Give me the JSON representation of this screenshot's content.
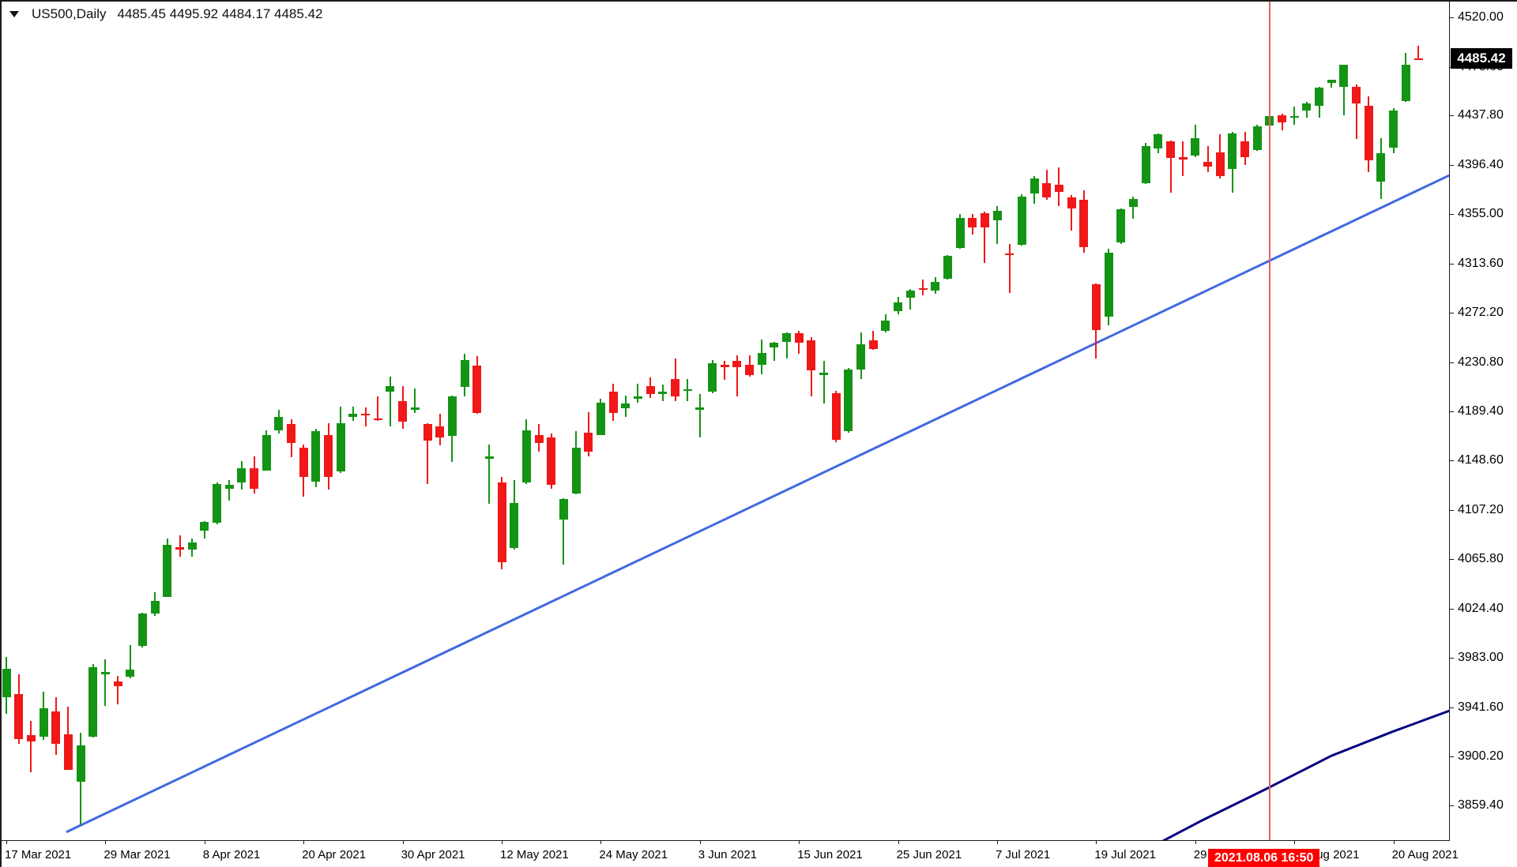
{
  "header": {
    "symbol_period": "US500,Daily",
    "quote_line": "4485.45 4495.92 4484.17 4485.42"
  },
  "colors": {
    "background": "#ffffff",
    "bull": "#149414",
    "bear": "#f01818",
    "trendline": "#4169e1",
    "moving_average": "#00007f",
    "crosshair_line": "#e96060",
    "time_tag_bg": "#ff0000",
    "time_tag_text": "#ffffff",
    "price_tag_bg": "#000000",
    "price_tag_text": "#ffffff",
    "axis_text": "#000000",
    "border": "#1a1a1a"
  },
  "chart_data": {
    "type": "candlestick",
    "symbol": "US500",
    "timeframe": "Daily",
    "quote": {
      "open": 4485.45,
      "high": 4495.92,
      "low": 4484.17,
      "close": 4485.42
    },
    "current_price_label": "4485.42",
    "crosshair_time_label": "2021.08.06 16:50",
    "crosshair_candle_index": 102,
    "y_axis": {
      "labels": [
        "4520.00",
        "4478.60",
        "4437.80",
        "4396.40",
        "4355.00",
        "4313.60",
        "4272.20",
        "4230.80",
        "4189.40",
        "4148.60",
        "4107.20",
        "4065.80",
        "4024.40",
        "3983.00",
        "3941.60",
        "3900.20",
        "3859.40"
      ],
      "grid": false
    },
    "x_axis": {
      "tick_labels": [
        "17 Mar 2021",
        "29 Mar 2021",
        "8 Apr 2021",
        "20 Apr 2021",
        "30 Apr 2021",
        "12 May 2021",
        "24 May 2021",
        "3 Jun 2021",
        "15 Jun 2021",
        "25 Jun 2021",
        "7 Jul 2021",
        "19 Jul 2021",
        "29 Jul 2021",
        "10 Aug 2021",
        "20 Aug 2021"
      ],
      "tick_every_n_candles": 8
    },
    "candles_format": [
      "date",
      "open",
      "high",
      "low",
      "close"
    ],
    "candles": [
      [
        "2021-03-17",
        3950,
        3984,
        3936,
        3974
      ],
      [
        "2021-03-18",
        3953,
        3969,
        3911,
        3915
      ],
      [
        "2021-03-19",
        3918,
        3930,
        3887,
        3913
      ],
      [
        "2021-03-22",
        3917,
        3955,
        3914,
        3941
      ],
      [
        "2021-03-23",
        3938,
        3950,
        3902,
        3911
      ],
      [
        "2021-03-24",
        3919,
        3942,
        3889,
        3889
      ],
      [
        "2021-03-25",
        3879,
        3920,
        3843,
        3910
      ],
      [
        "2021-03-26",
        3917,
        3978,
        3916,
        3975
      ],
      [
        "2021-03-29",
        3969,
        3982,
        3943,
        3971
      ],
      [
        "2021-03-30",
        3963,
        3968,
        3944,
        3959
      ],
      [
        "2021-03-31",
        3967,
        3994,
        3966,
        3973
      ],
      [
        "2021-04-01",
        3993,
        4021,
        3992,
        4020
      ],
      [
        "2021-04-02",
        4020,
        4038,
        4018,
        4031
      ],
      [
        "2021-04-05",
        4034,
        4083,
        4034,
        4078
      ],
      [
        "2021-04-06",
        4076,
        4086,
        4068,
        4074
      ],
      [
        "2021-04-07",
        4074,
        4083,
        4068,
        4080
      ],
      [
        "2021-04-08",
        4090,
        4098,
        4083,
        4097
      ],
      [
        "2021-04-09",
        4096,
        4130,
        4095,
        4129
      ],
      [
        "2021-04-12",
        4125,
        4132,
        4115,
        4128
      ],
      [
        "2021-04-13",
        4130,
        4148,
        4124,
        4142
      ],
      [
        "2021-04-14",
        4142,
        4152,
        4121,
        4125
      ],
      [
        "2021-04-15",
        4140,
        4174,
        4140,
        4170
      ],
      [
        "2021-04-16",
        4174,
        4191,
        4171,
        4185
      ],
      [
        "2021-04-19",
        4179,
        4183,
        4151,
        4163
      ],
      [
        "2021-04-20",
        4159,
        4162,
        4118,
        4135
      ],
      [
        "2021-04-21",
        4131,
        4175,
        4126,
        4173
      ],
      [
        "2021-04-22",
        4170,
        4180,
        4124,
        4135
      ],
      [
        "2021-04-23",
        4139,
        4194,
        4138,
        4180
      ],
      [
        "2021-04-26",
        4185,
        4194,
        4182,
        4188
      ],
      [
        "2021-04-27",
        4188,
        4193,
        4177,
        4187
      ],
      [
        "2021-04-28",
        4184,
        4202,
        4182,
        4183
      ],
      [
        "2021-04-29",
        4206,
        4219,
        4177,
        4211
      ],
      [
        "2021-04-30",
        4198,
        4211,
        4175,
        4181
      ],
      [
        "2021-05-03",
        4191,
        4209,
        4188,
        4193
      ],
      [
        "2021-05-04",
        4179,
        4180,
        4129,
        4165
      ],
      [
        "2021-05-05",
        4177,
        4188,
        4161,
        4168
      ],
      [
        "2021-05-06",
        4169,
        4203,
        4147,
        4202
      ],
      [
        "2021-05-07",
        4210,
        4238,
        4202,
        4233
      ],
      [
        "2021-05-10",
        4228,
        4236,
        4188,
        4188
      ],
      [
        "2021-05-11",
        4150,
        4162,
        4112,
        4152
      ],
      [
        "2021-05-12",
        4130,
        4135,
        4057,
        4063
      ],
      [
        "2021-05-13",
        4075,
        4132,
        4074,
        4113
      ],
      [
        "2021-05-14",
        4130,
        4183,
        4129,
        4174
      ],
      [
        "2021-05-17",
        4170,
        4179,
        4156,
        4163
      ],
      [
        "2021-05-18",
        4168,
        4171,
        4125,
        4128
      ],
      [
        "2021-05-19",
        4099,
        4117,
        4061,
        4116
      ],
      [
        "2021-05-20",
        4121,
        4173,
        4120,
        4159
      ],
      [
        "2021-05-21",
        4172,
        4189,
        4152,
        4156
      ],
      [
        "2021-05-24",
        4170,
        4200,
        4170,
        4197
      ],
      [
        "2021-05-25",
        4206,
        4213,
        4182,
        4188
      ],
      [
        "2021-05-26",
        4192,
        4203,
        4185,
        4196
      ],
      [
        "2021-05-27",
        4200,
        4213,
        4197,
        4202
      ],
      [
        "2021-05-28",
        4211,
        4218,
        4201,
        4204
      ],
      [
        "2021-05-31",
        4204,
        4212,
        4198,
        4206
      ],
      [
        "2021-06-01",
        4217,
        4234,
        4198,
        4202
      ],
      [
        "2021-06-02",
        4207,
        4217,
        4198,
        4208
      ],
      [
        "2021-06-03",
        4191,
        4204,
        4168,
        4193
      ],
      [
        "2021-06-04",
        4206,
        4233,
        4205,
        4230
      ],
      [
        "2021-06-07",
        4229,
        4232,
        4216,
        4227
      ],
      [
        "2021-06-08",
        4232,
        4237,
        4202,
        4227
      ],
      [
        "2021-06-09",
        4229,
        4237,
        4219,
        4220
      ],
      [
        "2021-06-10",
        4229,
        4250,
        4221,
        4239
      ],
      [
        "2021-06-11",
        4243,
        4248,
        4232,
        4247
      ],
      [
        "2021-06-14",
        4248,
        4256,
        4234,
        4255
      ],
      [
        "2021-06-15",
        4255,
        4257,
        4238,
        4247
      ],
      [
        "2021-06-16",
        4249,
        4252,
        4202,
        4224
      ],
      [
        "2021-06-17",
        4220,
        4232,
        4196,
        4222
      ],
      [
        "2021-06-18",
        4205,
        4207,
        4164,
        4166
      ],
      [
        "2021-06-21",
        4173,
        4226,
        4172,
        4225
      ],
      [
        "2021-06-22",
        4225,
        4256,
        4217,
        4246
      ],
      [
        "2021-06-23",
        4249,
        4257,
        4241,
        4242
      ],
      [
        "2021-06-24",
        4257,
        4271,
        4256,
        4266
      ],
      [
        "2021-06-25",
        4274,
        4286,
        4271,
        4281
      ],
      [
        "2021-06-28",
        4285,
        4292,
        4275,
        4291
      ],
      [
        "2021-06-29",
        4293,
        4300,
        4287,
        4292
      ],
      [
        "2021-06-30",
        4291,
        4302,
        4288,
        4298
      ],
      [
        "2021-07-01",
        4301,
        4321,
        4300,
        4320
      ],
      [
        "2021-07-02",
        4327,
        4355,
        4326,
        4352
      ],
      [
        "2021-07-05",
        4352,
        4355,
        4338,
        4344
      ],
      [
        "2021-07-06",
        4356,
        4357,
        4314,
        4344
      ],
      [
        "2021-07-07",
        4350,
        4362,
        4330,
        4358
      ],
      [
        "2021-07-08",
        4322,
        4330,
        4289,
        4321
      ],
      [
        "2021-07-09",
        4329,
        4372,
        4329,
        4370
      ],
      [
        "2021-07-12",
        4372,
        4387,
        4364,
        4385
      ],
      [
        "2021-07-13",
        4381,
        4392,
        4367,
        4369
      ],
      [
        "2021-07-14",
        4380,
        4394,
        4362,
        4374
      ],
      [
        "2021-07-15",
        4369,
        4371,
        4341,
        4360
      ],
      [
        "2021-07-16",
        4367,
        4375,
        4323,
        4327
      ],
      [
        "2021-07-19",
        4296,
        4297,
        4234,
        4258
      ],
      [
        "2021-07-20",
        4269,
        4326,
        4262,
        4323
      ],
      [
        "2021-07-21",
        4331,
        4360,
        4330,
        4359
      ],
      [
        "2021-07-22",
        4361,
        4370,
        4351,
        4368
      ],
      [
        "2021-07-23",
        4381,
        4415,
        4380,
        4412
      ],
      [
        "2021-07-26",
        4410,
        4423,
        4406,
        4422
      ],
      [
        "2021-07-27",
        4416,
        4417,
        4373,
        4402
      ],
      [
        "2021-07-28",
        4403,
        4416,
        4387,
        4401
      ],
      [
        "2021-07-29",
        4404,
        4430,
        4403,
        4419
      ],
      [
        "2021-07-30",
        4399,
        4412,
        4390,
        4395
      ],
      [
        "2021-08-02",
        4407,
        4422,
        4385,
        4387
      ],
      [
        "2021-08-03",
        4393,
        4424,
        4373,
        4423
      ],
      [
        "2021-08-04",
        4416,
        4424,
        4396,
        4403
      ],
      [
        "2021-08-05",
        4409,
        4430,
        4408,
        4429
      ],
      [
        "2021-08-06",
        4429,
        4441,
        4428,
        4437
      ],
      [
        "2021-08-09",
        4438,
        4439,
        4425,
        4432
      ],
      [
        "2021-08-10",
        4436,
        4445,
        4430,
        4437
      ],
      [
        "2021-08-11",
        4442,
        4449,
        4436,
        4448
      ],
      [
        "2021-08-12",
        4446,
        4462,
        4436,
        4461
      ],
      [
        "2021-08-13",
        4465,
        4468,
        4461,
        4468
      ],
      [
        "2021-08-16",
        4462,
        4480,
        4438,
        4480
      ],
      [
        "2021-08-17",
        4462,
        4464,
        4418,
        4448
      ],
      [
        "2021-08-18",
        4446,
        4454,
        4390,
        4400
      ],
      [
        "2021-08-19",
        4382,
        4419,
        4368,
        4406
      ],
      [
        "2021-08-20",
        4411,
        4444,
        4406,
        4442
      ],
      [
        "2021-08-23",
        4450,
        4490,
        4449,
        4480
      ],
      [
        "2021-08-24",
        4485.45,
        4495.92,
        4484.17,
        4485.42
      ]
    ],
    "overlays": [
      {
        "name": "trendline",
        "style": "straight-line",
        "anchors": [
          {
            "k": 4.85,
            "price": 3837
          },
          {
            "k": 116.6,
            "price": 4388
          }
        ]
      },
      {
        "name": "moving-average",
        "style": "curve",
        "points": [
          {
            "k": 92.0,
            "price": 3822
          },
          {
            "k": 96.6,
            "price": 3847
          },
          {
            "k": 101.7,
            "price": 3873
          },
          {
            "k": 107.0,
            "price": 3901
          },
          {
            "k": 111.9,
            "price": 3921
          },
          {
            "k": 116.6,
            "price": 3939
          }
        ]
      }
    ]
  }
}
